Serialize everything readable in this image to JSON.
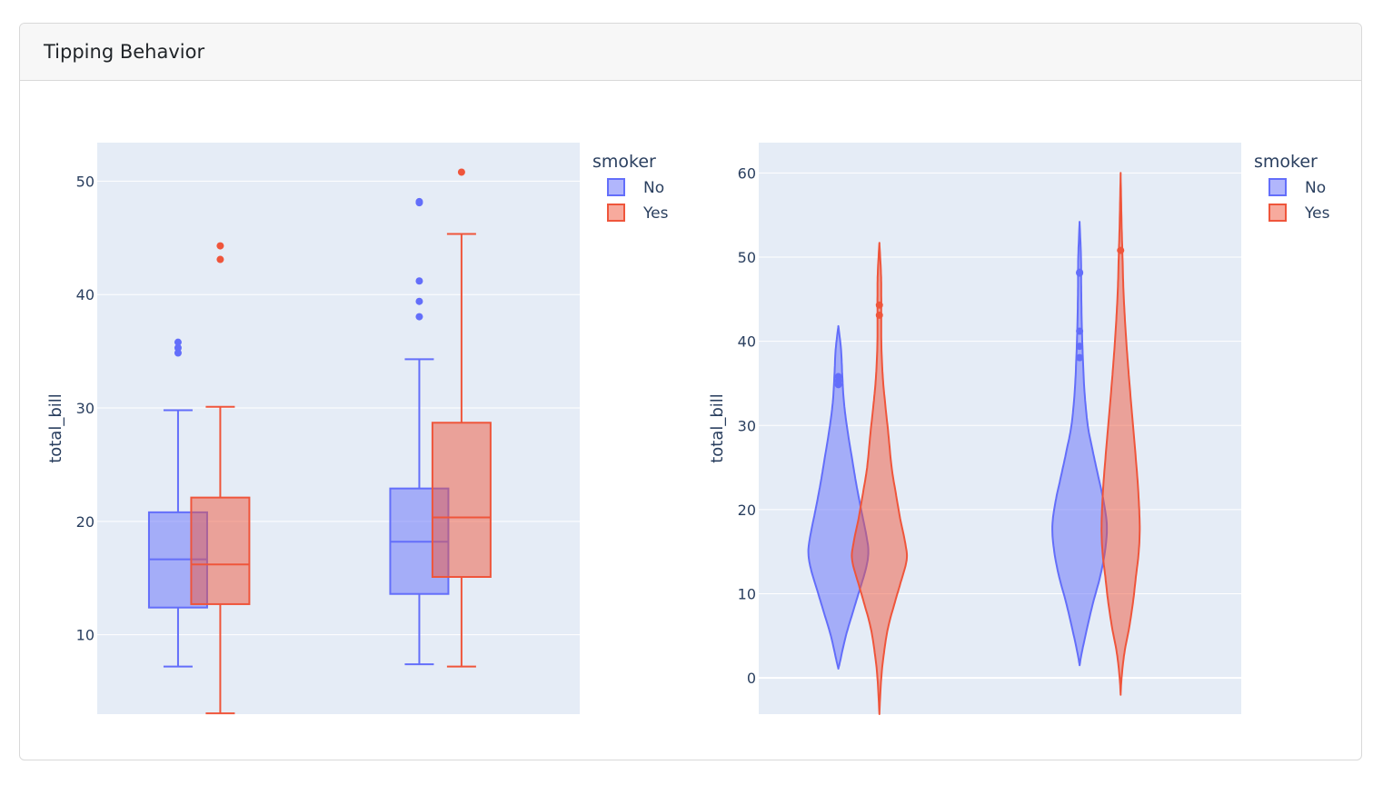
{
  "card": {
    "title": "Tipping Behavior"
  },
  "colors": {
    "No": "#636efa",
    "Yes": "#ef553b",
    "plot_bg": "#e5ecf6",
    "grid": "#ffffff",
    "text": "#2a3f5f"
  },
  "chart_data": [
    {
      "type": "box",
      "ylabel": "total_bill",
      "ylim": [
        3.0,
        53.4
      ],
      "yticks": [
        10,
        20,
        30,
        40,
        50
      ],
      "grid": true,
      "legend": {
        "title": "smoker",
        "entries": [
          "No",
          "Yes"
        ],
        "placement": "top-right outside"
      },
      "groups": 2,
      "boxes": [
        {
          "group": 0,
          "series": "No",
          "min": 7.2,
          "q1": 12.4,
          "median": 16.65,
          "q3": 20.8,
          "max": 29.8,
          "outliers": [
            34.85,
            35.3,
            35.8
          ]
        },
        {
          "group": 0,
          "series": "Yes",
          "min": 3.07,
          "q1": 12.7,
          "median": 16.2,
          "q3": 22.1,
          "max": 30.1,
          "outliers": [
            43.1,
            44.3
          ]
        },
        {
          "group": 1,
          "series": "No",
          "min": 7.4,
          "q1": 13.6,
          "median": 18.2,
          "q3": 22.9,
          "max": 34.3,
          "outliers": [
            38.05,
            39.4,
            41.2,
            48.1,
            48.2
          ]
        },
        {
          "group": 1,
          "series": "Yes",
          "min": 7.2,
          "q1": 15.1,
          "median": 20.35,
          "q3": 28.7,
          "max": 45.35,
          "outliers": [
            50.8
          ]
        }
      ]
    },
    {
      "type": "violin",
      "ylabel": "total_bill",
      "ylim": [
        -4.3,
        63.6
      ],
      "yticks": [
        0,
        10,
        20,
        30,
        40,
        50,
        60
      ],
      "grid": true,
      "legend": {
        "title": "smoker",
        "entries": [
          "No",
          "Yes"
        ],
        "placement": "top-right outside"
      },
      "groups": 2,
      "violins": [
        {
          "group": 0,
          "series": "No",
          "density": [
            [
              1.1,
              0
            ],
            [
              2,
              0.06
            ],
            [
              5,
              0.25
            ],
            [
              8,
              0.5
            ],
            [
              10,
              0.67
            ],
            [
              13,
              0.92
            ],
            [
              15,
              1
            ],
            [
              17,
              0.93
            ],
            [
              20,
              0.76
            ],
            [
              23,
              0.6
            ],
            [
              26,
              0.46
            ],
            [
              30,
              0.28
            ],
            [
              33,
              0.18
            ],
            [
              36,
              0.13
            ],
            [
              39,
              0.09
            ],
            [
              41.8,
              0
            ]
          ],
          "points": [
            34.85,
            35.3,
            35.8
          ]
        },
        {
          "group": 0,
          "series": "Yes",
          "density": [
            [
              -4.3,
              0
            ],
            [
              0,
              0.07
            ],
            [
              3,
              0.17
            ],
            [
              6,
              0.32
            ],
            [
              9,
              0.57
            ],
            [
              11,
              0.75
            ],
            [
              14,
              1
            ],
            [
              16,
              0.95
            ],
            [
              19,
              0.76
            ],
            [
              22,
              0.6
            ],
            [
              25,
              0.45
            ],
            [
              29,
              0.33
            ],
            [
              33,
              0.2
            ],
            [
              36,
              0.12
            ],
            [
              40,
              0.07
            ],
            [
              45,
              0.07
            ],
            [
              48,
              0.06
            ],
            [
              51.7,
              0
            ]
          ],
          "points": [
            43.1,
            44.3
          ]
        },
        {
          "group": 1,
          "series": "No",
          "density": [
            [
              1.5,
              0
            ],
            [
              3,
              0.08
            ],
            [
              6,
              0.28
            ],
            [
              9,
              0.5
            ],
            [
              12,
              0.75
            ],
            [
              15,
              0.93
            ],
            [
              18,
              1
            ],
            [
              21,
              0.88
            ],
            [
              24,
              0.68
            ],
            [
              27,
              0.48
            ],
            [
              30,
              0.3
            ],
            [
              34,
              0.18
            ],
            [
              38,
              0.12
            ],
            [
              42,
              0.08
            ],
            [
              46,
              0.06
            ],
            [
              50,
              0.05
            ],
            [
              54.2,
              0
            ]
          ],
          "points": [
            38.05,
            39.4,
            41.2,
            48.1,
            48.2
          ]
        },
        {
          "group": 1,
          "series": "Yes",
          "density": [
            [
              -2,
              0
            ],
            [
              0,
              0.05
            ],
            [
              3,
              0.2
            ],
            [
              6,
              0.45
            ],
            [
              9,
              0.65
            ],
            [
              12,
              0.8
            ],
            [
              15,
              0.95
            ],
            [
              18,
              1
            ],
            [
              22,
              0.93
            ],
            [
              26,
              0.8
            ],
            [
              30,
              0.65
            ],
            [
              34,
              0.5
            ],
            [
              38,
              0.36
            ],
            [
              42,
              0.24
            ],
            [
              46,
              0.15
            ],
            [
              50,
              0.1
            ],
            [
              54,
              0.05
            ],
            [
              60,
              0
            ]
          ],
          "points": [
            50.8
          ]
        }
      ]
    }
  ]
}
